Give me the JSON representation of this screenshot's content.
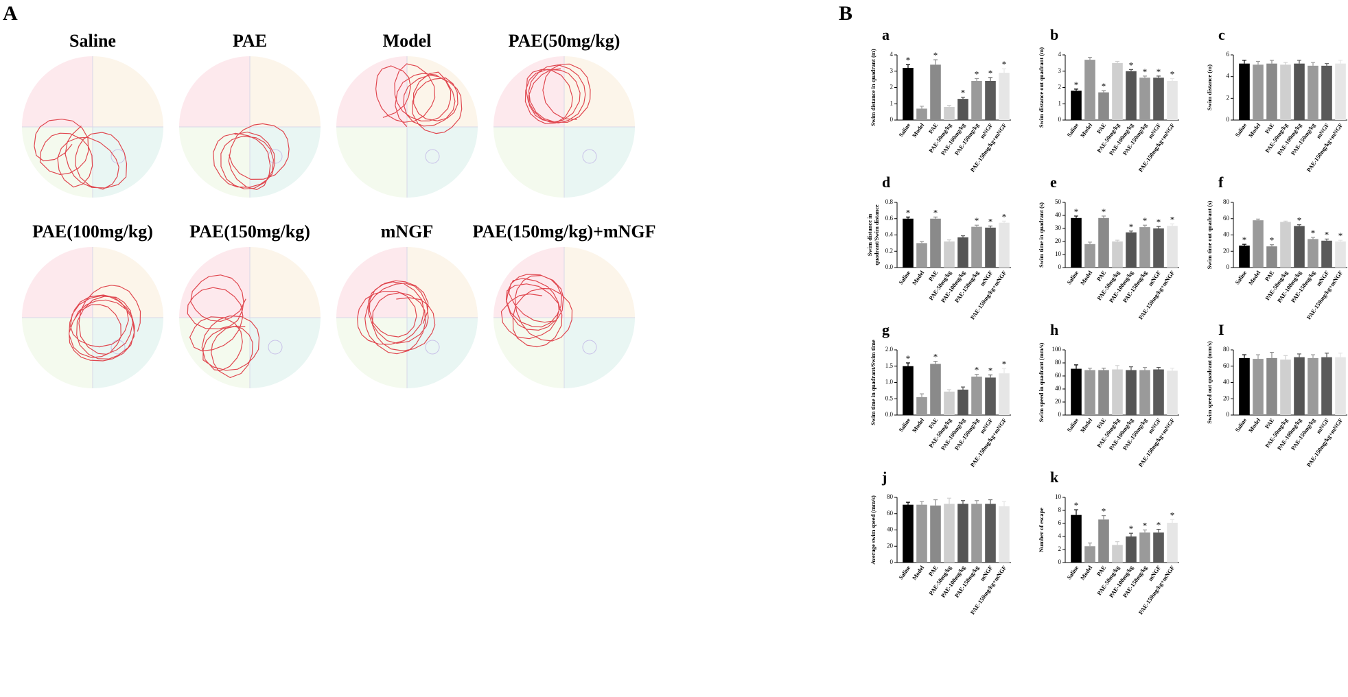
{
  "panel_a": {
    "label": "A",
    "arenas": [
      {
        "title": "Saline"
      },
      {
        "title": "PAE"
      },
      {
        "title": "Model"
      },
      {
        "title": "PAE(50mg/kg)"
      },
      {
        "title": "PAE(100mg/kg)"
      },
      {
        "title": "PAE(150mg/kg)"
      },
      {
        "title": "mNGF"
      },
      {
        "title": "PAE(150mg/kg)+mNGF"
      }
    ]
  },
  "panel_b": {
    "label": "B"
  },
  "chart_data": [
    {
      "type": "bar",
      "panel": "a",
      "y_label": "Swim distance in quadrant (m)",
      "categories": [
        "Saline",
        "Model",
        "PAE",
        "PAE-50mg/kg",
        "PAE-100mg/kg",
        "PAE-150mg/kg",
        "mNGF",
        "PAE-150mg/kg+mNGF"
      ],
      "values": [
        3.2,
        0.7,
        3.4,
        0.8,
        1.3,
        2.4,
        2.4,
        2.9
      ],
      "errors": [
        0.2,
        0.15,
        0.3,
        0.1,
        0.1,
        0.15,
        0.2,
        0.25
      ],
      "significance": [
        "*",
        null,
        "*",
        null,
        "*",
        "*",
        "*",
        "*"
      ],
      "colors": [
        "#000000",
        "#9a9a9a",
        "#8a8a8a",
        "#cfcfcf",
        "#555555",
        "#9a9a9a",
        "#5a5a5a",
        "#e6e6e6"
      ],
      "ylim": [
        0,
        4
      ],
      "yticks": [
        0,
        1,
        2,
        3,
        4
      ]
    },
    {
      "type": "bar",
      "panel": "b",
      "y_label": "Swim distance out quadrant (m)",
      "categories": [
        "Saline",
        "Model",
        "PAE",
        "PAE-50mg/kg",
        "PAE-100mg/kg",
        "PAE-150mg/kg",
        "mNGF",
        "PAE-150mg/kg+mNGF"
      ],
      "values": [
        1.8,
        3.7,
        1.7,
        3.5,
        3.0,
        2.6,
        2.6,
        2.4
      ],
      "errors": [
        0.1,
        0.15,
        0.1,
        0.1,
        0.1,
        0.1,
        0.1,
        0.15
      ],
      "significance": [
        "*",
        null,
        "*",
        null,
        "*",
        "*",
        "*",
        "*"
      ],
      "colors": [
        "#000000",
        "#9a9a9a",
        "#8a8a8a",
        "#cfcfcf",
        "#555555",
        "#9a9a9a",
        "#5a5a5a",
        "#e6e6e6"
      ],
      "ylim": [
        0,
        4
      ],
      "yticks": [
        0,
        1,
        2,
        3,
        4
      ]
    },
    {
      "type": "bar",
      "panel": "c",
      "y_label": "Swim distance (m)",
      "categories": [
        "Saline",
        "Model",
        "PAE",
        "PAE-50mg/kg",
        "PAE-100mg/kg",
        "PAE-150mg/kg",
        "mNGF",
        "PAE-150mg/kg+mNGF"
      ],
      "values": [
        5.2,
        5.1,
        5.2,
        5.1,
        5.2,
        5.0,
        5.0,
        5.2
      ],
      "errors": [
        0.3,
        0.3,
        0.3,
        0.2,
        0.3,
        0.3,
        0.2,
        0.3
      ],
      "significance": [
        null,
        null,
        null,
        null,
        null,
        null,
        null,
        null
      ],
      "colors": [
        "#000000",
        "#9a9a9a",
        "#8a8a8a",
        "#cfcfcf",
        "#555555",
        "#9a9a9a",
        "#5a5a5a",
        "#e6e6e6"
      ],
      "ylim": [
        0,
        6
      ],
      "yticks": [
        0,
        2,
        4,
        6
      ]
    },
    {
      "type": "bar",
      "panel": "d",
      "y_label": [
        "Swim distance in",
        "quadrant/Swim distance"
      ],
      "categories": [
        "Saline",
        "Model",
        "PAE",
        "PAE-50mg/kg",
        "PAE-100mg/kg",
        "PAE-150mg/kg",
        "mNGF",
        "PAE-150mg/kg+mNGF"
      ],
      "values": [
        0.6,
        0.3,
        0.6,
        0.32,
        0.37,
        0.5,
        0.49,
        0.55
      ],
      "errors": [
        0.02,
        0.02,
        0.02,
        0.02,
        0.02,
        0.02,
        0.02,
        0.02
      ],
      "significance": [
        "*",
        null,
        "*",
        null,
        null,
        "*",
        "*",
        "*"
      ],
      "colors": [
        "#000000",
        "#9a9a9a",
        "#8a8a8a",
        "#cfcfcf",
        "#555555",
        "#9a9a9a",
        "#5a5a5a",
        "#e6e6e6"
      ],
      "ylim": [
        0,
        0.8
      ],
      "yticks": [
        {
          "value": 0,
          "label": "0.0"
        },
        0.2,
        0.4,
        0.6,
        0.8
      ]
    },
    {
      "type": "bar",
      "panel": "e",
      "y_label": "Swim time in quadrant (s)",
      "categories": [
        "Saline",
        "Model",
        "PAE",
        "PAE-50mg/kg",
        "PAE-100mg/kg",
        "PAE-150mg/kg",
        "mNGF",
        "PAE-150mg/kg+mNGF"
      ],
      "values": [
        38,
        18,
        38,
        20,
        27,
        31,
        30,
        32
      ],
      "errors": [
        1.5,
        1.5,
        1.5,
        1,
        1,
        1.5,
        1.5,
        1.5
      ],
      "significance": [
        "*",
        null,
        "*",
        null,
        "*",
        "*",
        "*",
        "*"
      ],
      "colors": [
        "#000000",
        "#9a9a9a",
        "#8a8a8a",
        "#cfcfcf",
        "#555555",
        "#9a9a9a",
        "#5a5a5a",
        "#e6e6e6"
      ],
      "ylim": [
        0,
        50
      ],
      "yticks": [
        0,
        10,
        20,
        30,
        40,
        50
      ]
    },
    {
      "type": "bar",
      "panel": "f",
      "y_label": "Swim time out quadrant (s)",
      "categories": [
        "Saline",
        "Model",
        "PAE",
        "PAE-50mg/kg",
        "PAE-100mg/kg",
        "PAE-150mg/kg",
        "mNGF",
        "PAE-150mg/kg+mNGF"
      ],
      "values": [
        27,
        58,
        26,
        56,
        51,
        35,
        33,
        32
      ],
      "errors": [
        1.5,
        1.5,
        2,
        1,
        1.5,
        2,
        2,
        1.5
      ],
      "significance": [
        "*",
        null,
        "*",
        null,
        "*",
        "*",
        "*",
        "*"
      ],
      "colors": [
        "#000000",
        "#9a9a9a",
        "#8a8a8a",
        "#cfcfcf",
        "#555555",
        "#9a9a9a",
        "#5a5a5a",
        "#e6e6e6"
      ],
      "ylim": [
        0,
        80
      ],
      "yticks": [
        0,
        20,
        40,
        60,
        80
      ]
    },
    {
      "type": "bar",
      "panel": "g",
      "y_label": "Swim time in quadrant/Swim time",
      "categories": [
        "Saline",
        "Model",
        "PAE",
        "PAE-50mg/kg",
        "PAE-100mg/kg",
        "PAE-150mg/kg",
        "mNGF",
        "PAE-150mg/kg+mNGF"
      ],
      "values": [
        1.5,
        0.55,
        1.57,
        0.72,
        0.78,
        1.18,
        1.15,
        1.28
      ],
      "errors": [
        0.1,
        0.1,
        0.08,
        0.06,
        0.08,
        0.07,
        0.08,
        0.15
      ],
      "significance": [
        "*",
        null,
        "*",
        null,
        null,
        "*",
        "*",
        "*"
      ],
      "colors": [
        "#000000",
        "#9a9a9a",
        "#8a8a8a",
        "#cfcfcf",
        "#555555",
        "#9a9a9a",
        "#5a5a5a",
        "#e6e6e6"
      ],
      "ylim": [
        0,
        2
      ],
      "yticks": [
        {
          "value": 0,
          "label": "0.0"
        },
        0.5,
        {
          "value": 1,
          "label": "1.0"
        },
        1.5,
        {
          "value": 2,
          "label": "2.0"
        }
      ]
    },
    {
      "type": "bar",
      "panel": "h",
      "y_label": "Swim speed in quadrant (mm/s)",
      "categories": [
        "Saline",
        "Model",
        "PAE",
        "PAE-50mg/kg",
        "PAE-100mg/kg",
        "PAE-150mg/kg",
        "mNGF",
        "PAE-150mg/kg+mNGF"
      ],
      "values": [
        71,
        69,
        69,
        70,
        69,
        69,
        70,
        68
      ],
      "errors": [
        6,
        3,
        3,
        6,
        5,
        4,
        3,
        4
      ],
      "significance": [
        null,
        null,
        null,
        null,
        null,
        null,
        null,
        null
      ],
      "colors": [
        "#000000",
        "#9a9a9a",
        "#8a8a8a",
        "#cfcfcf",
        "#555555",
        "#9a9a9a",
        "#5a5a5a",
        "#e6e6e6"
      ],
      "ylim": [
        0,
        100
      ],
      "yticks": [
        0,
        20,
        40,
        60,
        80,
        100
      ]
    },
    {
      "type": "bar",
      "panel": "I",
      "y_label": "Swim speed out quadrant (mm/s)",
      "categories": [
        "Saline",
        "Model",
        "PAE",
        "PAE-50mg/kg",
        "PAE-100mg/kg",
        "PAE-150mg/kg",
        "mNGF",
        "PAE-150mg/kg+mNGF"
      ],
      "values": [
        70,
        69,
        70,
        68,
        71,
        70,
        71,
        71
      ],
      "errors": [
        4,
        5,
        7,
        5,
        4,
        4,
        5,
        5
      ],
      "significance": [
        null,
        null,
        null,
        null,
        null,
        null,
        null,
        null
      ],
      "colors": [
        "#000000",
        "#9a9a9a",
        "#8a8a8a",
        "#cfcfcf",
        "#555555",
        "#9a9a9a",
        "#5a5a5a",
        "#e6e6e6"
      ],
      "ylim": [
        0,
        80
      ],
      "yticks": [
        0,
        20,
        40,
        60,
        80
      ]
    },
    {
      "type": "bar",
      "panel": "j",
      "y_label": "Average swim speed (mm/s)",
      "categories": [
        "Saline",
        "Model",
        "PAE",
        "PAE-50mg/kg",
        "PAE-100mg/kg",
        "PAE-150mg/kg",
        "mNGF",
        "PAE-150mg/kg+mNGF"
      ],
      "values": [
        71,
        71,
        70,
        72,
        72,
        72,
        72,
        69
      ],
      "errors": [
        3,
        4,
        7,
        7,
        4,
        4,
        5,
        6
      ],
      "significance": [
        null,
        null,
        null,
        null,
        null,
        null,
        null,
        null
      ],
      "colors": [
        "#000000",
        "#9a9a9a",
        "#8a8a8a",
        "#cfcfcf",
        "#555555",
        "#9a9a9a",
        "#5a5a5a",
        "#e6e6e6"
      ],
      "ylim": [
        0,
        80
      ],
      "yticks": [
        0,
        20,
        40,
        60,
        80
      ]
    },
    {
      "type": "bar",
      "panel": "k",
      "y_label": "Number of escape",
      "categories": [
        "Saline",
        "Model",
        "PAE",
        "PAE-50mg/kg",
        "PAE-100mg/kg",
        "PAE-150mg/kg",
        "mNGF",
        "PAE-150mg/kg+mNGF"
      ],
      "values": [
        7.3,
        2.5,
        6.6,
        2.7,
        4.0,
        4.6,
        4.6,
        6.1
      ],
      "errors": [
        0.8,
        0.5,
        0.6,
        0.5,
        0.5,
        0.4,
        0.5,
        0.5
      ],
      "significance": [
        "*",
        null,
        "*",
        null,
        "*",
        "*",
        "*",
        "*"
      ],
      "colors": [
        "#000000",
        "#9a9a9a",
        "#8a8a8a",
        "#cfcfcf",
        "#555555",
        "#9a9a9a",
        "#5a5a5a",
        "#e6e6e6"
      ],
      "ylim": [
        0,
        10
      ],
      "yticks": [
        0,
        2,
        4,
        6,
        8,
        10
      ]
    }
  ]
}
